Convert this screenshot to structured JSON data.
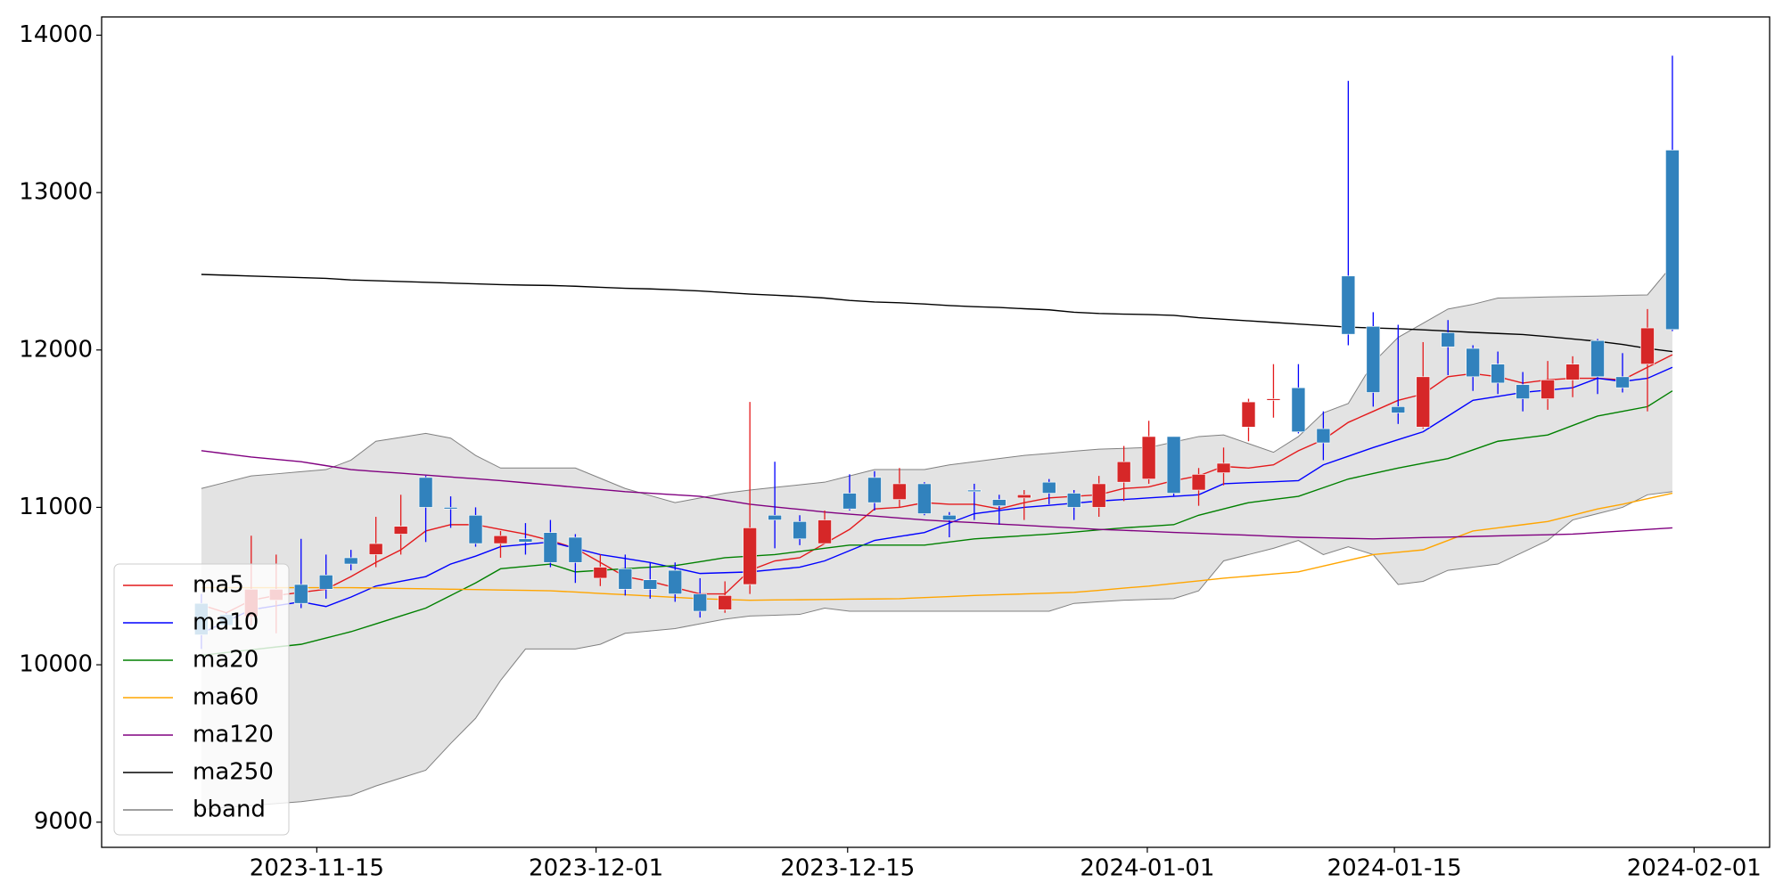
{
  "chart_data": {
    "type": "candlestick",
    "up_color": "#3182bd",
    "down_color": "#d62728",
    "up_wick_color": "#0000ff",
    "down_wick_color": "#e41a1c",
    "xlim": [
      -4,
      62.9
    ],
    "xticks": [
      {
        "value": 4.63,
        "label": "2023-11-15"
      },
      {
        "value": 15.83,
        "label": "2023-12-01"
      },
      {
        "value": 25.92,
        "label": "2023-12-15"
      },
      {
        "value": 37.94,
        "label": "2024-01-01"
      },
      {
        "value": 47.85,
        "label": "2024-01-15"
      },
      {
        "value": 59.87,
        "label": "2024-02-01"
      }
    ],
    "ylim": [
      8840,
      14116
    ],
    "yticks": [
      9000,
      10000,
      11000,
      12000,
      13000,
      14000
    ],
    "legend": "lower left",
    "candles": {
      "open": [
        10190,
        10250,
        10480,
        10480,
        10390,
        10480,
        10640,
        10770,
        10880,
        11000,
        10990,
        10770,
        10820,
        10780,
        10650,
        10650,
        10620,
        10480,
        10480,
        10450,
        10340,
        10440,
        10870,
        10920,
        10800,
        10920,
        10990,
        11030,
        11150,
        10960,
        10920,
        11100,
        11010,
        11080,
        11090,
        11000,
        11150,
        11290,
        11450,
        11090,
        11210,
        11280,
        11670,
        11690,
        11480,
        11410,
        12100,
        11730,
        11600,
        11830,
        12020,
        11830,
        11790,
        11690,
        11810,
        11910,
        11830,
        11760,
        12140,
        12130
      ],
      "high": [
        10450,
        10330,
        10820,
        10700,
        10800,
        10700,
        10730,
        10940,
        11080,
        11200,
        11070,
        11000,
        10850,
        10900,
        10920,
        10830,
        10700,
        10700,
        10650,
        10650,
        10550,
        10530,
        11670,
        11290,
        10950,
        10980,
        11210,
        11230,
        11250,
        11160,
        10970,
        11150,
        11080,
        11110,
        11180,
        11110,
        11200,
        11390,
        11550,
        11450,
        11250,
        11380,
        11690,
        11910,
        11910,
        11610,
        13710,
        12240,
        12160,
        12050,
        12190,
        12030,
        11990,
        11860,
        11930,
        11960,
        12070,
        11980,
        12260,
        13870
      ],
      "low": [
        10100,
        10230,
        10250,
        10200,
        10360,
        10420,
        10600,
        10620,
        10700,
        10780,
        10870,
        10750,
        10680,
        10700,
        10620,
        10520,
        10500,
        10440,
        10420,
        10400,
        10300,
        10330,
        10450,
        10740,
        10760,
        10770,
        10980,
        10980,
        11000,
        10950,
        10810,
        10920,
        10890,
        10920,
        11020,
        10920,
        10940,
        11040,
        11150,
        11070,
        11010,
        11140,
        11420,
        11570,
        11470,
        11300,
        12030,
        11640,
        11530,
        11500,
        11840,
        11740,
        11720,
        11610,
        11620,
        11700,
        11720,
        11730,
        11610,
        12120
      ],
      "close": [
        10390,
        10320,
        10305,
        10410,
        10510,
        10570,
        10680,
        10700,
        10830,
        11190,
        11000,
        10950,
        10770,
        10800,
        10840,
        10810,
        10550,
        10610,
        10540,
        10600,
        10450,
        10350,
        10510,
        10950,
        10910,
        10770,
        11090,
        11190,
        11050,
        11150,
        10950,
        11110,
        11050,
        11060,
        11160,
        11090,
        11000,
        11160,
        11180,
        11450,
        11110,
        11220,
        11510,
        11680,
        11760,
        11500,
        12470,
        12150,
        11640,
        11510,
        12110,
        12010,
        11910,
        11780,
        11690,
        11810,
        12060,
        11830,
        11910,
        13270
      ]
    },
    "series": [
      {
        "name": "ma5",
        "color": "#e41a1c",
        "values": [
          10380,
          10330,
          10410,
          10440,
          10460,
          10480,
          10560,
          10650,
          10730,
          10850,
          10890,
          10890,
          10860,
          10830,
          10790,
          10740,
          10650,
          10560,
          10530,
          10490,
          10450,
          10450,
          10600,
          10660,
          10680,
          10770,
          10860,
          10990,
          11000,
          11030,
          11020,
          11020,
          10990,
          11030,
          11060,
          11070,
          11080,
          11120,
          11130,
          11170,
          11200,
          11260,
          11250,
          11270,
          11360,
          11430,
          11540,
          11610,
          11680,
          11720,
          11830,
          11850,
          11830,
          11790,
          11810,
          11820,
          11820,
          11810,
          11890,
          11970
        ]
      },
      {
        "name": "ma10",
        "color": "#0000ff",
        "values": [
          10200,
          10275,
          10350,
          10375,
          10400,
          10370,
          10430,
          10500,
          10530,
          10560,
          10640,
          10690,
          10750,
          10765,
          10780,
          10740,
          10700,
          10675,
          10650,
          10615,
          10580,
          10585,
          10590,
          10605,
          10620,
          10660,
          10725,
          10790,
          10815,
          10840,
          10900,
          10960,
          10980,
          11000,
          11013,
          11027,
          11040,
          11050,
          11060,
          11070,
          11080,
          11150,
          11157,
          11163,
          11170,
          11270,
          11325,
          11380,
          11430,
          11480,
          11580,
          11680,
          11705,
          11730,
          11745,
          11760,
          11820,
          11800,
          11820,
          11890
        ]
      },
      {
        "name": "ma20",
        "color": "#008000",
        "values": [
          10060,
          10078,
          10095,
          10113,
          10130,
          10170,
          10210,
          10260,
          10310,
          10360,
          10440,
          10520,
          10610,
          10625,
          10640,
          10590,
          10600,
          10610,
          10620,
          10630,
          10655,
          10680,
          10690,
          10700,
          10720,
          10740,
          10760,
          10760,
          10760,
          10760,
          10780,
          10800,
          10810,
          10820,
          10830,
          10843,
          10857,
          10870,
          10880,
          10890,
          10950,
          10990,
          11030,
          11050,
          11070,
          11125,
          11180,
          11215,
          11250,
          11280,
          11310,
          11365,
          11420,
          11440,
          11460,
          11520,
          11580,
          11610,
          11640,
          11740
        ]
      },
      {
        "name": "ma60",
        "color": "#ffa500",
        "values": [
          10490,
          10490,
          10490,
          10490,
          10490,
          10490,
          10490,
          10488,
          10485,
          10483,
          10480,
          10478,
          10475,
          10473,
          10470,
          10462,
          10453,
          10445,
          10437,
          10428,
          10420,
          10415,
          10410,
          10412,
          10413,
          10415,
          10417,
          10418,
          10420,
          10427,
          10433,
          10440,
          10445,
          10450,
          10455,
          10460,
          10473,
          10487,
          10500,
          10517,
          10533,
          10550,
          10563,
          10577,
          10590,
          10627,
          10663,
          10700,
          10715,
          10730,
          10790,
          10850,
          10870,
          10890,
          10910,
          10950,
          10990,
          11020,
          11055,
          11090
        ]
      },
      {
        "name": "ma120",
        "color": "#800080",
        "values": [
          11360,
          11340,
          11320,
          11305,
          11290,
          11265,
          11240,
          11228,
          11217,
          11205,
          11193,
          11182,
          11170,
          11156,
          11142,
          11128,
          11114,
          11100,
          11090,
          11080,
          11070,
          11045,
          11020,
          11003,
          10987,
          10970,
          10957,
          10945,
          10932,
          10920,
          10911,
          10903,
          10894,
          10886,
          10877,
          10869,
          10860,
          10854,
          10848,
          10841,
          10835,
          10829,
          10823,
          10816,
          10810,
          10807,
          10803,
          10800,
          10804,
          10808,
          10811,
          10815,
          10819,
          10823,
          10826,
          10830,
          10840,
          10850,
          10860,
          10870
        ]
      },
      {
        "name": "ma250",
        "color": "#000000",
        "values": [
          12480,
          12475,
          12470,
          12465,
          12460,
          12455,
          12445,
          12440,
          12435,
          12430,
          12425,
          12420,
          12415,
          12412,
          12410,
          12405,
          12398,
          12392,
          12388,
          12382,
          12375,
          12365,
          12355,
          12348,
          12340,
          12330,
          12315,
          12305,
          12300,
          12292,
          12282,
          12275,
          12270,
          12262,
          12255,
          12240,
          12232,
          12228,
          12225,
          12220,
          12205,
          12195,
          12185,
          12175,
          12165,
          12155,
          12145,
          12140,
          12135,
          12128,
          12120,
          12112,
          12105,
          12098,
          12085,
          12070,
          12055,
          12035,
          12010,
          11990
        ]
      },
      {
        "name": "bband",
        "color": "#808080",
        "fill": "#e3e3e3",
        "upper": [
          11120,
          11160,
          11200,
          11213,
          11227,
          11240,
          11300,
          11420,
          11445,
          11470,
          11440,
          11330,
          11250,
          11250,
          11250,
          11250,
          11185,
          11120,
          11075,
          11030,
          11060,
          11090,
          11110,
          11127,
          11143,
          11160,
          11200,
          11240,
          11240,
          11240,
          11270,
          11290,
          11310,
          11330,
          11343,
          11357,
          11370,
          11375,
          11380,
          11415,
          11450,
          11460,
          11405,
          11350,
          11450,
          11600,
          11660,
          11920,
          12080,
          12170,
          12260,
          12290,
          12330,
          12333,
          12337,
          12340,
          12343,
          12347,
          12350,
          12540
        ],
        "lower": [
          9080,
          9093,
          9105,
          9118,
          9130,
          9150,
          9170,
          9230,
          9280,
          9330,
          9500,
          9660,
          9900,
          10100,
          10100,
          10100,
          10130,
          10200,
          10215,
          10230,
          10260,
          10290,
          10310,
          10315,
          10320,
          10360,
          10340,
          10340,
          10340,
          10340,
          10340,
          10340,
          10340,
          10340,
          10340,
          10390,
          10400,
          10410,
          10415,
          10420,
          10470,
          10660,
          10700,
          10740,
          10790,
          10700,
          10750,
          10700,
          10510,
          10530,
          10600,
          10620,
          10640,
          10715,
          10790,
          10920,
          10960,
          11000,
          11080,
          11100
        ]
      }
    ]
  }
}
